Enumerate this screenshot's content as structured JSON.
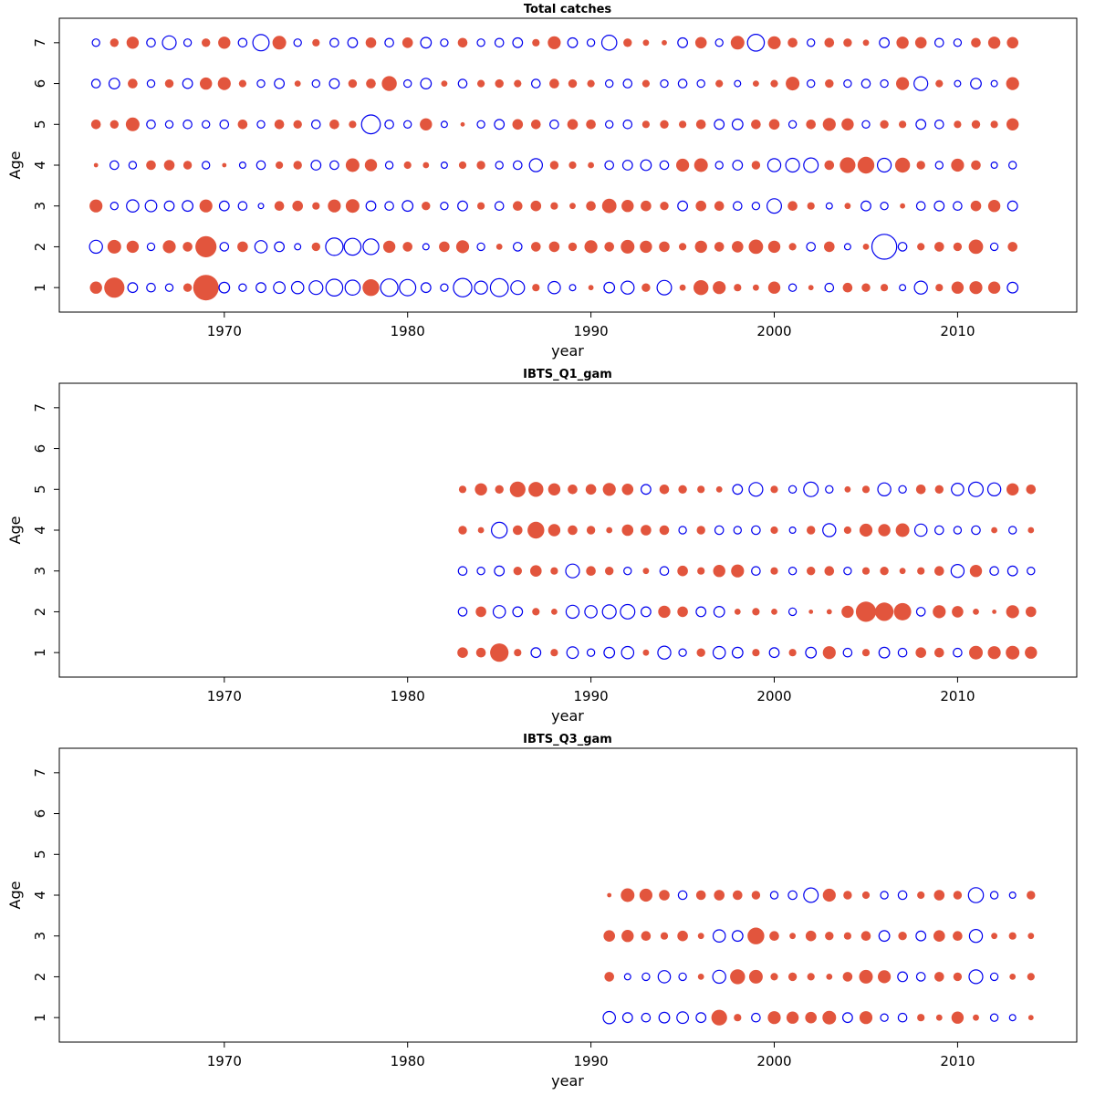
{
  "colors": {
    "positive_fill": "#e2553d",
    "negative_stroke": "#0000ee",
    "axis": "#000000",
    "background": "#ffffff"
  },
  "chart_data": [
    {
      "type": "scatter",
      "title": "Total catches",
      "xlabel": "year",
      "ylabel": "Age",
      "xlim": [
        1961,
        2016.5
      ],
      "ylim": [
        0.4,
        7.6
      ],
      "xticks": [
        1970,
        1980,
        1990,
        2000,
        2010
      ],
      "yticks": [
        1,
        2,
        3,
        4,
        5,
        6,
        7
      ],
      "start_year": 1963,
      "bubble_scale": 7.5,
      "encoding": {
        "positive": "filled-red",
        "negative": "open-blue",
        "area": "abs(value)"
      },
      "series": [
        {
          "age": 1,
          "values": [
            0.8,
            2.2,
            -0.5,
            -0.4,
            -0.3,
            0.4,
            3.5,
            -0.6,
            -0.3,
            -0.5,
            -0.7,
            -0.8,
            -1.0,
            -1.5,
            -1.2,
            1.5,
            -1.6,
            -1.4,
            -0.5,
            -0.3,
            -1.8,
            -0.9,
            -1.7,
            -1.0,
            0.3,
            -0.8,
            -0.2,
            0.15,
            -0.6,
            -0.9,
            0.4,
            -1.1,
            0.2,
            1.2,
            0.9,
            0.3,
            0.2,
            0.8,
            -0.3,
            0.15,
            -0.4,
            0.5,
            0.4,
            0.3,
            -0.2,
            -0.9,
            0.3,
            0.8,
            0.9,
            0.8,
            -0.6
          ]
        },
        {
          "age": 2,
          "values": [
            -0.9,
            1.0,
            0.8,
            -0.3,
            0.9,
            0.5,
            2.4,
            -0.4,
            0.6,
            -0.8,
            -0.5,
            -0.2,
            0.4,
            -1.6,
            -1.5,
            -1.3,
            0.8,
            0.5,
            -0.2,
            0.6,
            0.9,
            -0.3,
            0.2,
            -0.4,
            0.5,
            0.6,
            0.4,
            0.9,
            0.5,
            1.0,
            0.8,
            0.6,
            0.3,
            0.8,
            0.5,
            0.7,
            1.1,
            0.8,
            0.3,
            -0.4,
            0.6,
            -0.2,
            0.2,
            -3.3,
            -0.4,
            0.3,
            0.5,
            0.4,
            1.1,
            -0.3,
            0.5
          ]
        },
        {
          "age": 3,
          "values": [
            0.9,
            -0.3,
            -0.8,
            -0.7,
            -0.5,
            -0.6,
            0.9,
            -0.5,
            -0.4,
            -0.15,
            0.5,
            0.6,
            0.3,
            0.9,
            1.0,
            -0.5,
            -0.4,
            -0.6,
            0.4,
            -0.3,
            -0.5,
            0.3,
            -0.4,
            0.5,
            0.6,
            0.3,
            0.2,
            0.5,
            1.1,
            0.8,
            0.6,
            0.4,
            -0.5,
            0.6,
            0.5,
            -0.4,
            -0.3,
            -1.1,
            0.5,
            0.3,
            -0.2,
            0.2,
            -0.5,
            -0.3,
            0.15,
            -0.4,
            -0.5,
            -0.4,
            0.6,
            0.8,
            -0.5
          ]
        },
        {
          "age": 4,
          "values": [
            0.1,
            -0.4,
            -0.3,
            0.5,
            0.6,
            0.4,
            -0.3,
            0.1,
            -0.2,
            -0.4,
            0.3,
            0.4,
            -0.5,
            -0.4,
            1.0,
            0.8,
            -0.3,
            0.3,
            0.2,
            -0.2,
            0.3,
            0.4,
            -0.3,
            -0.4,
            -0.9,
            0.4,
            0.3,
            0.2,
            -0.4,
            -0.5,
            -0.6,
            -0.4,
            0.9,
            1.0,
            -0.3,
            -0.5,
            0.4,
            -0.9,
            -1.0,
            -1.1,
            0.5,
            1.3,
            1.5,
            -1.0,
            1.2,
            0.4,
            -0.3,
            0.9,
            0.5,
            -0.2,
            -0.3
          ]
        },
        {
          "age": 5,
          "values": [
            0.5,
            0.4,
            1.0,
            -0.4,
            -0.3,
            -0.4,
            -0.3,
            -0.4,
            0.5,
            -0.3,
            0.5,
            0.4,
            -0.4,
            0.5,
            0.3,
            -1.9,
            -0.4,
            -0.3,
            0.8,
            -0.2,
            0.1,
            -0.3,
            -0.5,
            0.6,
            0.5,
            -0.4,
            0.6,
            0.5,
            -0.3,
            -0.4,
            0.3,
            0.4,
            0.3,
            0.5,
            -0.5,
            -0.6,
            0.5,
            0.6,
            -0.3,
            0.5,
            0.9,
            0.8,
            -0.3,
            0.4,
            0.3,
            -0.5,
            -0.4,
            0.3,
            0.4,
            0.3,
            0.8
          ]
        },
        {
          "age": 6,
          "values": [
            -0.4,
            -0.6,
            0.5,
            -0.3,
            0.4,
            -0.5,
            0.8,
            0.9,
            0.3,
            -0.3,
            -0.5,
            0.2,
            -0.3,
            -0.5,
            0.4,
            0.5,
            1.2,
            -0.3,
            -0.6,
            0.2,
            -0.4,
            0.3,
            0.4,
            0.3,
            -0.4,
            0.5,
            0.4,
            0.3,
            -0.3,
            -0.4,
            0.3,
            -0.3,
            -0.4,
            -0.3,
            0.3,
            -0.2,
            0.2,
            0.3,
            1.0,
            -0.3,
            0.4,
            -0.3,
            -0.4,
            -0.3,
            0.9,
            -1.0,
            0.3,
            -0.2,
            -0.6,
            -0.2,
            0.9
          ]
        },
        {
          "age": 7,
          "values": [
            -0.3,
            0.4,
            0.8,
            -0.4,
            -1.0,
            -0.3,
            0.4,
            0.8,
            -0.4,
            -1.4,
            1.0,
            -0.3,
            0.3,
            -0.4,
            -0.5,
            0.6,
            -0.4,
            0.6,
            -0.6,
            -0.3,
            0.5,
            -0.3,
            -0.4,
            -0.5,
            0.3,
            0.9,
            -0.5,
            -0.3,
            -1.2,
            0.4,
            0.2,
            0.15,
            -0.5,
            0.7,
            -0.3,
            1.0,
            -1.5,
            0.9,
            0.5,
            -0.3,
            0.5,
            0.4,
            0.2,
            -0.5,
            0.8,
            0.7,
            -0.4,
            -0.3,
            0.5,
            0.8,
            0.7
          ]
        }
      ]
    },
    {
      "type": "scatter",
      "title": "IBTS_Q1_gam",
      "xlabel": "year",
      "ylabel": "Age",
      "xlim": [
        1961,
        2016.5
      ],
      "ylim": [
        0.4,
        7.6
      ],
      "xticks": [
        1970,
        1980,
        1990,
        2000,
        2010
      ],
      "yticks": [
        1,
        2,
        3,
        4,
        5,
        6,
        7
      ],
      "start_year": 1983,
      "bubble_scale": 7.5,
      "encoding": {
        "positive": "filled-red",
        "negative": "open-blue",
        "area": "abs(value)"
      },
      "series": [
        {
          "age": 1,
          "values": [
            0.6,
            0.5,
            1.8,
            0.3,
            -0.5,
            0.3,
            -0.7,
            -0.3,
            -0.6,
            -0.8,
            0.2,
            -0.9,
            -0.3,
            0.4,
            -0.8,
            -0.6,
            0.3,
            -0.5,
            0.3,
            -0.6,
            0.9,
            -0.4,
            0.3,
            -0.6,
            -0.4,
            0.6,
            0.5,
            -0.4,
            1.0,
            0.9,
            1.0,
            0.8
          ]
        },
        {
          "age": 2,
          "values": [
            -0.4,
            0.6,
            -0.8,
            -0.5,
            0.3,
            0.2,
            -0.9,
            -0.8,
            -1.0,
            -1.1,
            -0.5,
            0.8,
            0.6,
            -0.5,
            -0.6,
            0.2,
            0.3,
            0.2,
            -0.3,
            0.1,
            0.15,
            0.8,
            2.2,
            1.8,
            1.6,
            -0.4,
            0.9,
            0.7,
            0.2,
            0.1,
            0.9,
            0.6
          ]
        },
        {
          "age": 3,
          "values": [
            -0.4,
            -0.3,
            -0.5,
            0.4,
            0.7,
            0.3,
            -1.0,
            0.5,
            0.4,
            -0.3,
            0.2,
            -0.4,
            0.6,
            0.3,
            0.8,
            0.9,
            -0.4,
            0.3,
            -0.3,
            0.4,
            0.5,
            -0.3,
            0.3,
            0.4,
            0.2,
            0.3,
            0.5,
            -0.9,
            0.8,
            -0.4,
            -0.5,
            -0.3
          ]
        },
        {
          "age": 4,
          "values": [
            0.4,
            0.2,
            -1.3,
            0.5,
            1.5,
            0.8,
            0.5,
            0.4,
            0.2,
            0.7,
            0.6,
            0.5,
            -0.3,
            0.4,
            -0.4,
            -0.3,
            -0.4,
            0.3,
            -0.2,
            0.4,
            -0.9,
            0.3,
            0.9,
            0.8,
            1.0,
            -0.8,
            -0.4,
            -0.3,
            -0.4,
            0.2,
            -0.3,
            0.2
          ]
        },
        {
          "age": 5,
          "values": [
            0.3,
            0.8,
            0.4,
            1.3,
            1.2,
            0.8,
            0.5,
            0.6,
            0.9,
            0.7,
            -0.5,
            0.5,
            0.4,
            0.3,
            0.2,
            -0.5,
            -1.0,
            0.3,
            -0.3,
            -1.1,
            -0.3,
            0.2,
            0.3,
            -0.9,
            -0.3,
            0.5,
            0.4,
            -0.8,
            -1.1,
            -0.9,
            0.8,
            0.5
          ]
        }
      ]
    },
    {
      "type": "scatter",
      "title": "IBTS_Q3_gam",
      "xlabel": "year",
      "ylabel": "Age",
      "xlim": [
        1961,
        2016.5
      ],
      "ylim": [
        0.4,
        7.6
      ],
      "xticks": [
        1970,
        1980,
        1990,
        2000,
        2010
      ],
      "yticks": [
        1,
        2,
        3,
        4,
        5,
        6,
        7
      ],
      "start_year": 1991,
      "bubble_scale": 7.5,
      "encoding": {
        "positive": "filled-red",
        "negative": "open-blue",
        "area": "abs(value)"
      },
      "series": [
        {
          "age": 1,
          "values": [
            -0.8,
            -0.5,
            -0.4,
            -0.6,
            -0.7,
            -0.5,
            1.3,
            0.3,
            -0.4,
            0.9,
            0.8,
            0.7,
            1.0,
            -0.5,
            0.9,
            -0.3,
            -0.4,
            0.3,
            0.2,
            0.8,
            0.2,
            -0.3,
            -0.2,
            0.15
          ]
        },
        {
          "age": 2,
          "values": [
            0.5,
            -0.2,
            -0.3,
            -0.8,
            -0.3,
            0.2,
            -0.9,
            1.2,
            1.0,
            0.3,
            0.4,
            0.3,
            0.2,
            0.5,
            1.0,
            0.9,
            -0.5,
            -0.4,
            0.5,
            0.4,
            -1.0,
            -0.3,
            0.2,
            0.3
          ]
        },
        {
          "age": 3,
          "values": [
            0.7,
            0.8,
            0.5,
            0.3,
            0.6,
            0.2,
            -0.8,
            -0.6,
            1.5,
            0.5,
            0.2,
            0.6,
            0.4,
            0.3,
            0.5,
            -0.6,
            0.4,
            -0.5,
            0.7,
            0.5,
            -0.9,
            0.2,
            0.3,
            0.2
          ]
        },
        {
          "age": 4,
          "values": [
            0.1,
            1.0,
            0.9,
            0.6,
            -0.4,
            0.5,
            0.6,
            0.5,
            0.4,
            -0.3,
            -0.4,
            -1.1,
            0.9,
            0.4,
            0.3,
            -0.3,
            -0.4,
            0.3,
            0.6,
            0.4,
            -1.2,
            -0.3,
            -0.2,
            0.4
          ]
        }
      ]
    }
  ]
}
